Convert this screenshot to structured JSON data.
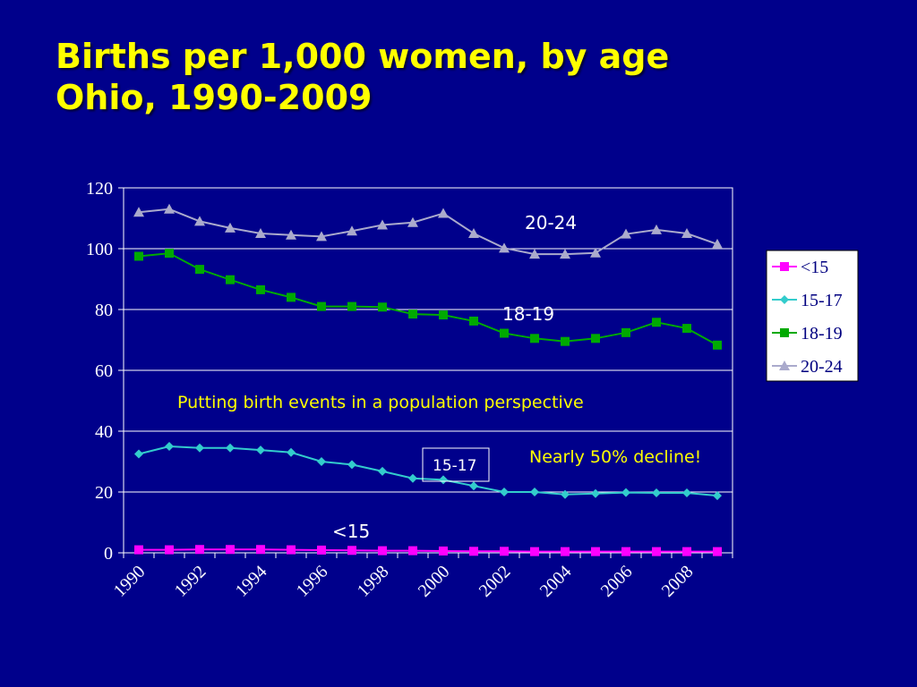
{
  "slide": {
    "title_line1": "Births per 1,000 women, by age",
    "title_line2": "Ohio, 1990-2009"
  },
  "colors": {
    "background": "#00008b",
    "title": "#ffff00",
    "annotation_yellow": "#ffff00",
    "annotation_white": "#ffffff",
    "series_lt15": "#ff00ff",
    "series_15_17": "#33cccc",
    "series_18_19": "#00aa00",
    "series_20_24": "#aaaacc"
  },
  "chart_data": {
    "type": "line",
    "x": [
      1990,
      1991,
      1992,
      1993,
      1994,
      1995,
      1996,
      1997,
      1998,
      1999,
      2000,
      2001,
      2002,
      2003,
      2004,
      2005,
      2006,
      2007,
      2008,
      2009
    ],
    "x_tick_labels": [
      "1990",
      "1992",
      "1994",
      "1996",
      "1998",
      "2000",
      "2002",
      "2004",
      "2006",
      "2008"
    ],
    "y_ticks": [
      0,
      20,
      40,
      60,
      80,
      100,
      120
    ],
    "ylim": [
      0,
      120
    ],
    "grid": "horizontal",
    "legend_position": "right",
    "series": [
      {
        "name": "<15",
        "marker": "square",
        "color": "#ff00ff",
        "values": [
          1.0,
          1.0,
          1.1,
          1.1,
          1.1,
          1.0,
          0.9,
          0.8,
          0.7,
          0.7,
          0.6,
          0.5,
          0.5,
          0.4,
          0.4,
          0.4,
          0.4,
          0.4,
          0.4,
          0.4
        ]
      },
      {
        "name": "15-17",
        "marker": "diamond",
        "color": "#33cccc",
        "values": [
          32.5,
          35.0,
          34.5,
          34.5,
          33.8,
          33.0,
          30.0,
          29.0,
          26.8,
          24.5,
          24.0,
          22.0,
          20.0,
          20.0,
          19.2,
          19.5,
          19.8,
          19.7,
          19.7,
          18.8
        ]
      },
      {
        "name": "18-19",
        "marker": "square",
        "color": "#00aa00",
        "values": [
          97.5,
          98.5,
          93.2,
          89.8,
          86.5,
          84.0,
          81.0,
          81.0,
          80.8,
          78.5,
          78.2,
          76.2,
          72.2,
          70.5,
          69.5,
          70.5,
          72.4,
          75.8,
          73.8,
          68.3
        ]
      },
      {
        "name": "20-24",
        "marker": "triangle",
        "color": "#aaaacc",
        "values": [
          112.0,
          113.0,
          109.0,
          106.8,
          105.0,
          104.5,
          104.0,
          105.8,
          107.8,
          108.6,
          111.6,
          105.0,
          100.2,
          98.2,
          98.2,
          98.6,
          104.8,
          106.2,
          105.0,
          101.5
        ]
      }
    ],
    "annotations": {
      "label_20_24": "20-24",
      "label_18_19": "18-19",
      "label_15_17": "15-17",
      "label_lt15": "<15",
      "perspective": "Putting birth events in a population perspective",
      "decline": "Nearly 50% decline!"
    }
  }
}
